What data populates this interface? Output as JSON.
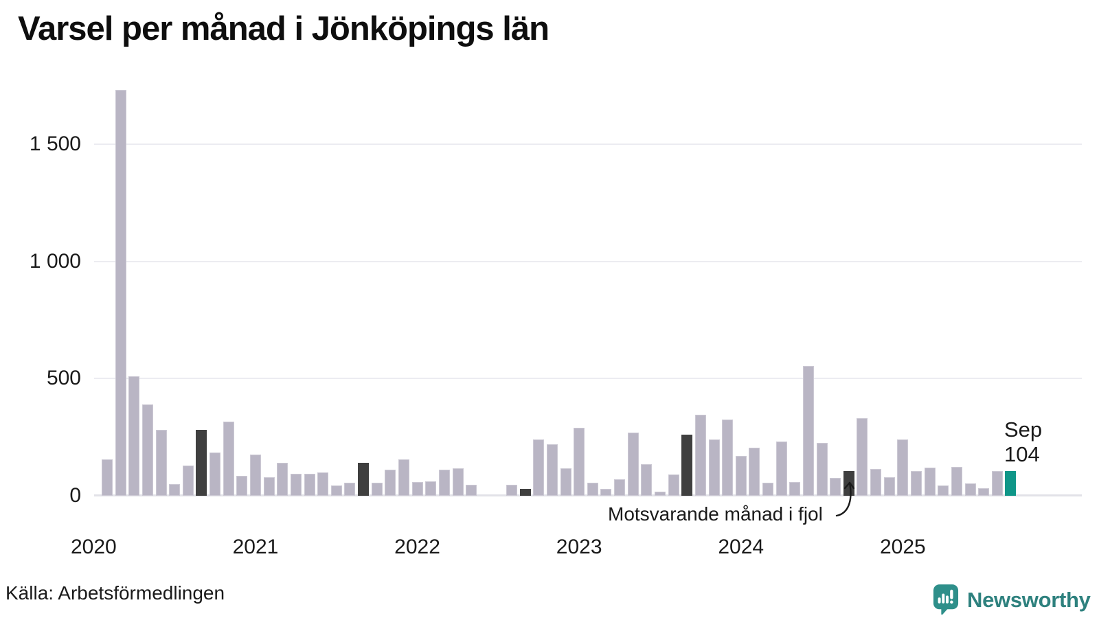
{
  "title": "Varsel per månad i Jönköpings län",
  "source": "Källa: Arbetsförmedlingen",
  "brand": {
    "name": "Newsworthy",
    "teal": "#2e8f8a"
  },
  "annotation": {
    "text": "Motsvarande månad i fjol"
  },
  "current_label": {
    "line1": "Sep",
    "line2": "104"
  },
  "colors": {
    "bar_regular": "#b9b5c4",
    "bar_last_year": "#3f3f3f",
    "bar_current": "#0f9688",
    "gridline": "#ececf1",
    "axis_line": "#e2e2e8",
    "text": "#1a1a1a"
  },
  "chart_data": {
    "type": "bar",
    "title": "Varsel per månad i Jönköpings län",
    "xlabel": "",
    "ylabel": "",
    "ylim": [
      0,
      1750
    ],
    "grid": true,
    "y_ticks": [
      {
        "value": 0,
        "label": "0"
      },
      {
        "value": 500,
        "label": "500"
      },
      {
        "value": 1000,
        "label": "1 000"
      },
      {
        "value": 1500,
        "label": "1 500"
      }
    ],
    "x_year_labels": [
      "2020",
      "2021",
      "2022",
      "2023",
      "2024",
      "2025"
    ],
    "current_month": "2025-09",
    "current_value": 104,
    "highlighted_last_year_months": [
      "2020-09",
      "2021-09",
      "2022-09",
      "2023-09",
      "2024-09"
    ],
    "months": [
      {
        "month": "2020-02",
        "value": 155,
        "role": "regular"
      },
      {
        "month": "2020-03",
        "value": 1730,
        "role": "regular"
      },
      {
        "month": "2020-04",
        "value": 510,
        "role": "regular"
      },
      {
        "month": "2020-05",
        "value": 390,
        "role": "regular"
      },
      {
        "month": "2020-06",
        "value": 280,
        "role": "regular"
      },
      {
        "month": "2020-07",
        "value": 50,
        "role": "regular"
      },
      {
        "month": "2020-08",
        "value": 130,
        "role": "regular"
      },
      {
        "month": "2020-09",
        "value": 280,
        "role": "lastyear"
      },
      {
        "month": "2020-10",
        "value": 185,
        "role": "regular"
      },
      {
        "month": "2020-11",
        "value": 315,
        "role": "regular"
      },
      {
        "month": "2020-12",
        "value": 85,
        "role": "regular"
      },
      {
        "month": "2021-01",
        "value": 175,
        "role": "regular"
      },
      {
        "month": "2021-02",
        "value": 80,
        "role": "regular"
      },
      {
        "month": "2021-03",
        "value": 140,
        "role": "regular"
      },
      {
        "month": "2021-04",
        "value": 93,
        "role": "regular"
      },
      {
        "month": "2021-05",
        "value": 93,
        "role": "regular"
      },
      {
        "month": "2021-06",
        "value": 100,
        "role": "regular"
      },
      {
        "month": "2021-07",
        "value": 45,
        "role": "regular"
      },
      {
        "month": "2021-08",
        "value": 57,
        "role": "regular"
      },
      {
        "month": "2021-09",
        "value": 140,
        "role": "lastyear"
      },
      {
        "month": "2021-10",
        "value": 55,
        "role": "regular"
      },
      {
        "month": "2021-11",
        "value": 110,
        "role": "regular"
      },
      {
        "month": "2021-12",
        "value": 155,
        "role": "regular"
      },
      {
        "month": "2022-01",
        "value": 58,
        "role": "regular"
      },
      {
        "month": "2022-02",
        "value": 62,
        "role": "regular"
      },
      {
        "month": "2022-03",
        "value": 111,
        "role": "regular"
      },
      {
        "month": "2022-04",
        "value": 118,
        "role": "regular"
      },
      {
        "month": "2022-05",
        "value": 48,
        "role": "regular"
      },
      {
        "month": "2022-06",
        "value": 0,
        "role": "regular"
      },
      {
        "month": "2022-07",
        "value": 0,
        "role": "regular"
      },
      {
        "month": "2022-08",
        "value": 46,
        "role": "regular"
      },
      {
        "month": "2022-09",
        "value": 28,
        "role": "lastyear"
      },
      {
        "month": "2022-10",
        "value": 240,
        "role": "regular"
      },
      {
        "month": "2022-11",
        "value": 220,
        "role": "regular"
      },
      {
        "month": "2022-12",
        "value": 117,
        "role": "regular"
      },
      {
        "month": "2023-01",
        "value": 290,
        "role": "regular"
      },
      {
        "month": "2023-02",
        "value": 55,
        "role": "regular"
      },
      {
        "month": "2023-03",
        "value": 30,
        "role": "regular"
      },
      {
        "month": "2023-04",
        "value": 70,
        "role": "regular"
      },
      {
        "month": "2023-05",
        "value": 270,
        "role": "regular"
      },
      {
        "month": "2023-06",
        "value": 135,
        "role": "regular"
      },
      {
        "month": "2023-07",
        "value": 18,
        "role": "regular"
      },
      {
        "month": "2023-08",
        "value": 90,
        "role": "regular"
      },
      {
        "month": "2023-09",
        "value": 260,
        "role": "lastyear"
      },
      {
        "month": "2023-10",
        "value": 345,
        "role": "regular"
      },
      {
        "month": "2023-11",
        "value": 240,
        "role": "regular"
      },
      {
        "month": "2023-12",
        "value": 325,
        "role": "regular"
      },
      {
        "month": "2024-01",
        "value": 170,
        "role": "regular"
      },
      {
        "month": "2024-02",
        "value": 205,
        "role": "regular"
      },
      {
        "month": "2024-03",
        "value": 55,
        "role": "regular"
      },
      {
        "month": "2024-04",
        "value": 230,
        "role": "regular"
      },
      {
        "month": "2024-05",
        "value": 60,
        "role": "regular"
      },
      {
        "month": "2024-06",
        "value": 555,
        "role": "regular"
      },
      {
        "month": "2024-07",
        "value": 225,
        "role": "regular"
      },
      {
        "month": "2024-08",
        "value": 75,
        "role": "regular"
      },
      {
        "month": "2024-09",
        "value": 105,
        "role": "lastyear"
      },
      {
        "month": "2024-10",
        "value": 330,
        "role": "regular"
      },
      {
        "month": "2024-11",
        "value": 115,
        "role": "regular"
      },
      {
        "month": "2024-12",
        "value": 80,
        "role": "regular"
      },
      {
        "month": "2025-01",
        "value": 240,
        "role": "regular"
      },
      {
        "month": "2025-02",
        "value": 105,
        "role": "regular"
      },
      {
        "month": "2025-03",
        "value": 120,
        "role": "regular"
      },
      {
        "month": "2025-04",
        "value": 45,
        "role": "regular"
      },
      {
        "month": "2025-05",
        "value": 123,
        "role": "regular"
      },
      {
        "month": "2025-06",
        "value": 53,
        "role": "regular"
      },
      {
        "month": "2025-07",
        "value": 33,
        "role": "regular"
      },
      {
        "month": "2025-08",
        "value": 106,
        "role": "regular"
      },
      {
        "month": "2025-09",
        "value": 104,
        "role": "current"
      }
    ]
  }
}
